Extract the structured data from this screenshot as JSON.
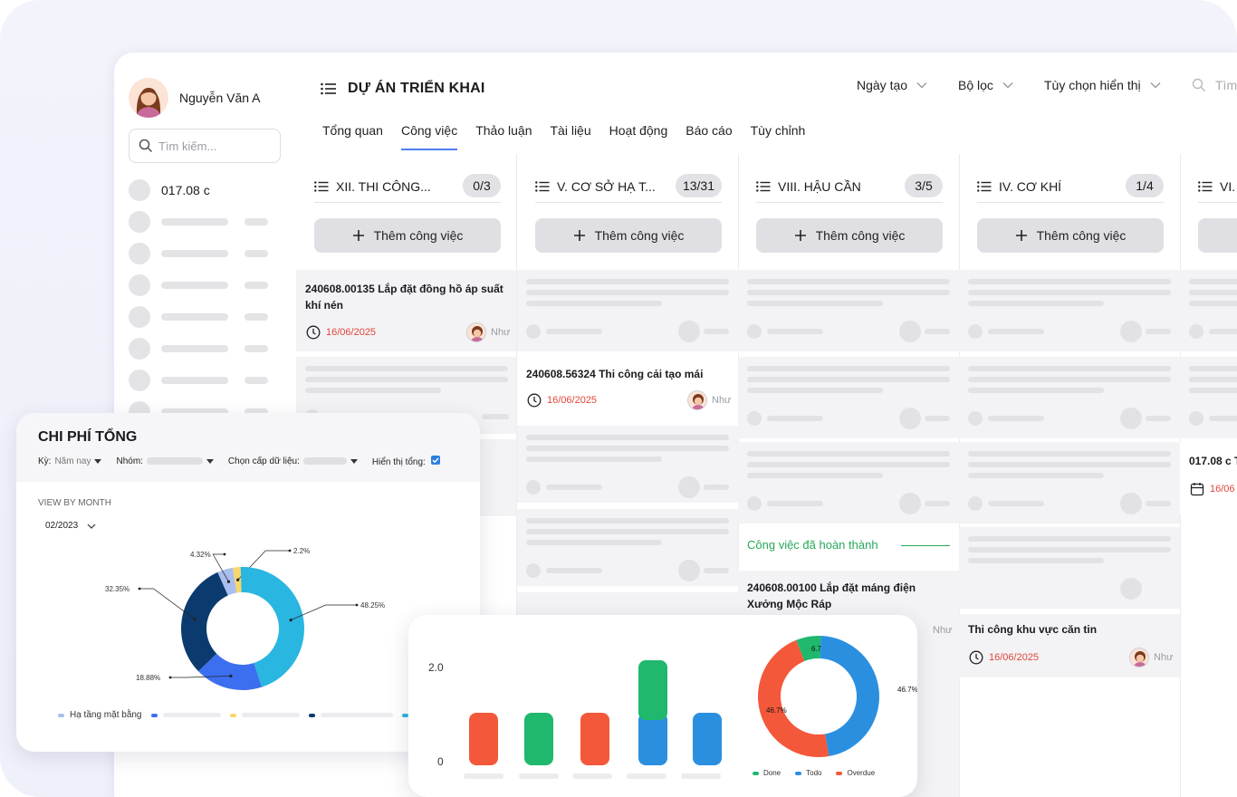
{
  "sidebar": {
    "user_name": "Nguyễn Văn A",
    "search_placeholder": "Tìm kiếm...",
    "items": [
      {
        "label": "017.08 c"
      }
    ]
  },
  "header": {
    "title": "DỰ ÁN TRIỂN KHAI",
    "sort_label": "Ngày tạo",
    "filter_label": "Bộ lọc",
    "display_label": "Tùy chọn hiển thị",
    "search_label": "Tìm"
  },
  "tabs": [
    {
      "label": "Tổng quan"
    },
    {
      "label": "Công việc",
      "active": true
    },
    {
      "label": "Thảo luận"
    },
    {
      "label": "Tài liệu"
    },
    {
      "label": "Hoạt động"
    },
    {
      "label": "Báo cáo"
    },
    {
      "label": "Tùy chỉnh"
    }
  ],
  "add_task_label": "Thêm công việc",
  "columns": [
    {
      "title": "XII.  THI CÔNG...",
      "count": "0/3",
      "task": {
        "title": "240608.00135  Lắp đặt đồng hồ áp suất khí nén",
        "date": "16/06/2025",
        "assignee": "Như"
      }
    },
    {
      "title": "V. CƠ SỞ HẠ T...",
      "count": "13/31",
      "task": {
        "title": "240608.56324  Thi công cải tạo mái",
        "date": "16/06/2025",
        "assignee": "Như"
      }
    },
    {
      "title": "VIII. HẬU CẦN",
      "count": "3/5",
      "done_label": "Công việc đã hoàn thành",
      "task": {
        "title": "240608.00100 Lắp đặt máng điện Xưởng Mộc Ráp",
        "assignee": "Như"
      }
    },
    {
      "title": "IV. CƠ KHÍ",
      "count": "1/4",
      "task": {
        "title": "Thi công khu vực căn tin",
        "date": "16/06/2025",
        "assignee": "Như"
      }
    },
    {
      "title": "VI.",
      "item_label": "017.08 c T",
      "item_date": "16/06"
    }
  ],
  "cost_panel": {
    "title": "CHI PHÍ TỔNG",
    "filter_period_label": "Kỳ:",
    "filter_period_value": "Năm nay",
    "filter_group_label": "Nhóm:",
    "filter_level_label": "Chọn cấp dữ liệu:",
    "filter_total_label": "Hiển thị tổng:",
    "show_total_checked": true,
    "view_by": "VIEW BY MONTH",
    "month": "02/2023",
    "legend_first": "Hạ tầng mặt bằng"
  },
  "chart_data": [
    {
      "type": "pie",
      "title": "",
      "slices": [
        {
          "label": "Hạ tầng mặt bằng",
          "value": 4.32,
          "display": "4.32%",
          "color": "#a8bff0"
        },
        {
          "label": "",
          "value": 2.2,
          "display": "2.2%",
          "color": "#f8d66d"
        },
        {
          "label": "",
          "value": 48.25,
          "display": "48.25%",
          "color": "#29b6e0"
        },
        {
          "label": "",
          "value": 18.88,
          "display": "18.88%",
          "color": "#3c6ff0"
        },
        {
          "label": "",
          "value": 32.35,
          "display": "32.35%",
          "color": "#0b3b6e"
        }
      ]
    },
    {
      "type": "bar",
      "title": "",
      "ylim": [
        0,
        2.0
      ],
      "yticks": [
        "2.0",
        "0"
      ],
      "series": [
        {
          "name": "Done",
          "color": "#1fb86d",
          "values": [
            0,
            1,
            0,
            1,
            0
          ]
        },
        {
          "name": "Todo",
          "color": "#2b8fe0",
          "values": [
            0,
            0,
            0,
            1,
            1
          ]
        },
        {
          "name": "Overdue",
          "color": "#f4583a",
          "values": [
            1,
            0,
            1,
            0,
            0
          ]
        }
      ]
    },
    {
      "type": "pie",
      "title": "",
      "slices": [
        {
          "label": "Done",
          "value": 6.7,
          "display": "6.7%",
          "color": "#1fb86d"
        },
        {
          "label": "Todo",
          "value": 46.7,
          "display": "46.7%",
          "color": "#2b8fe0"
        },
        {
          "label": "Overdue",
          "value": 46.7,
          "display": "46.7%",
          "color": "#f4583a"
        }
      ]
    }
  ]
}
